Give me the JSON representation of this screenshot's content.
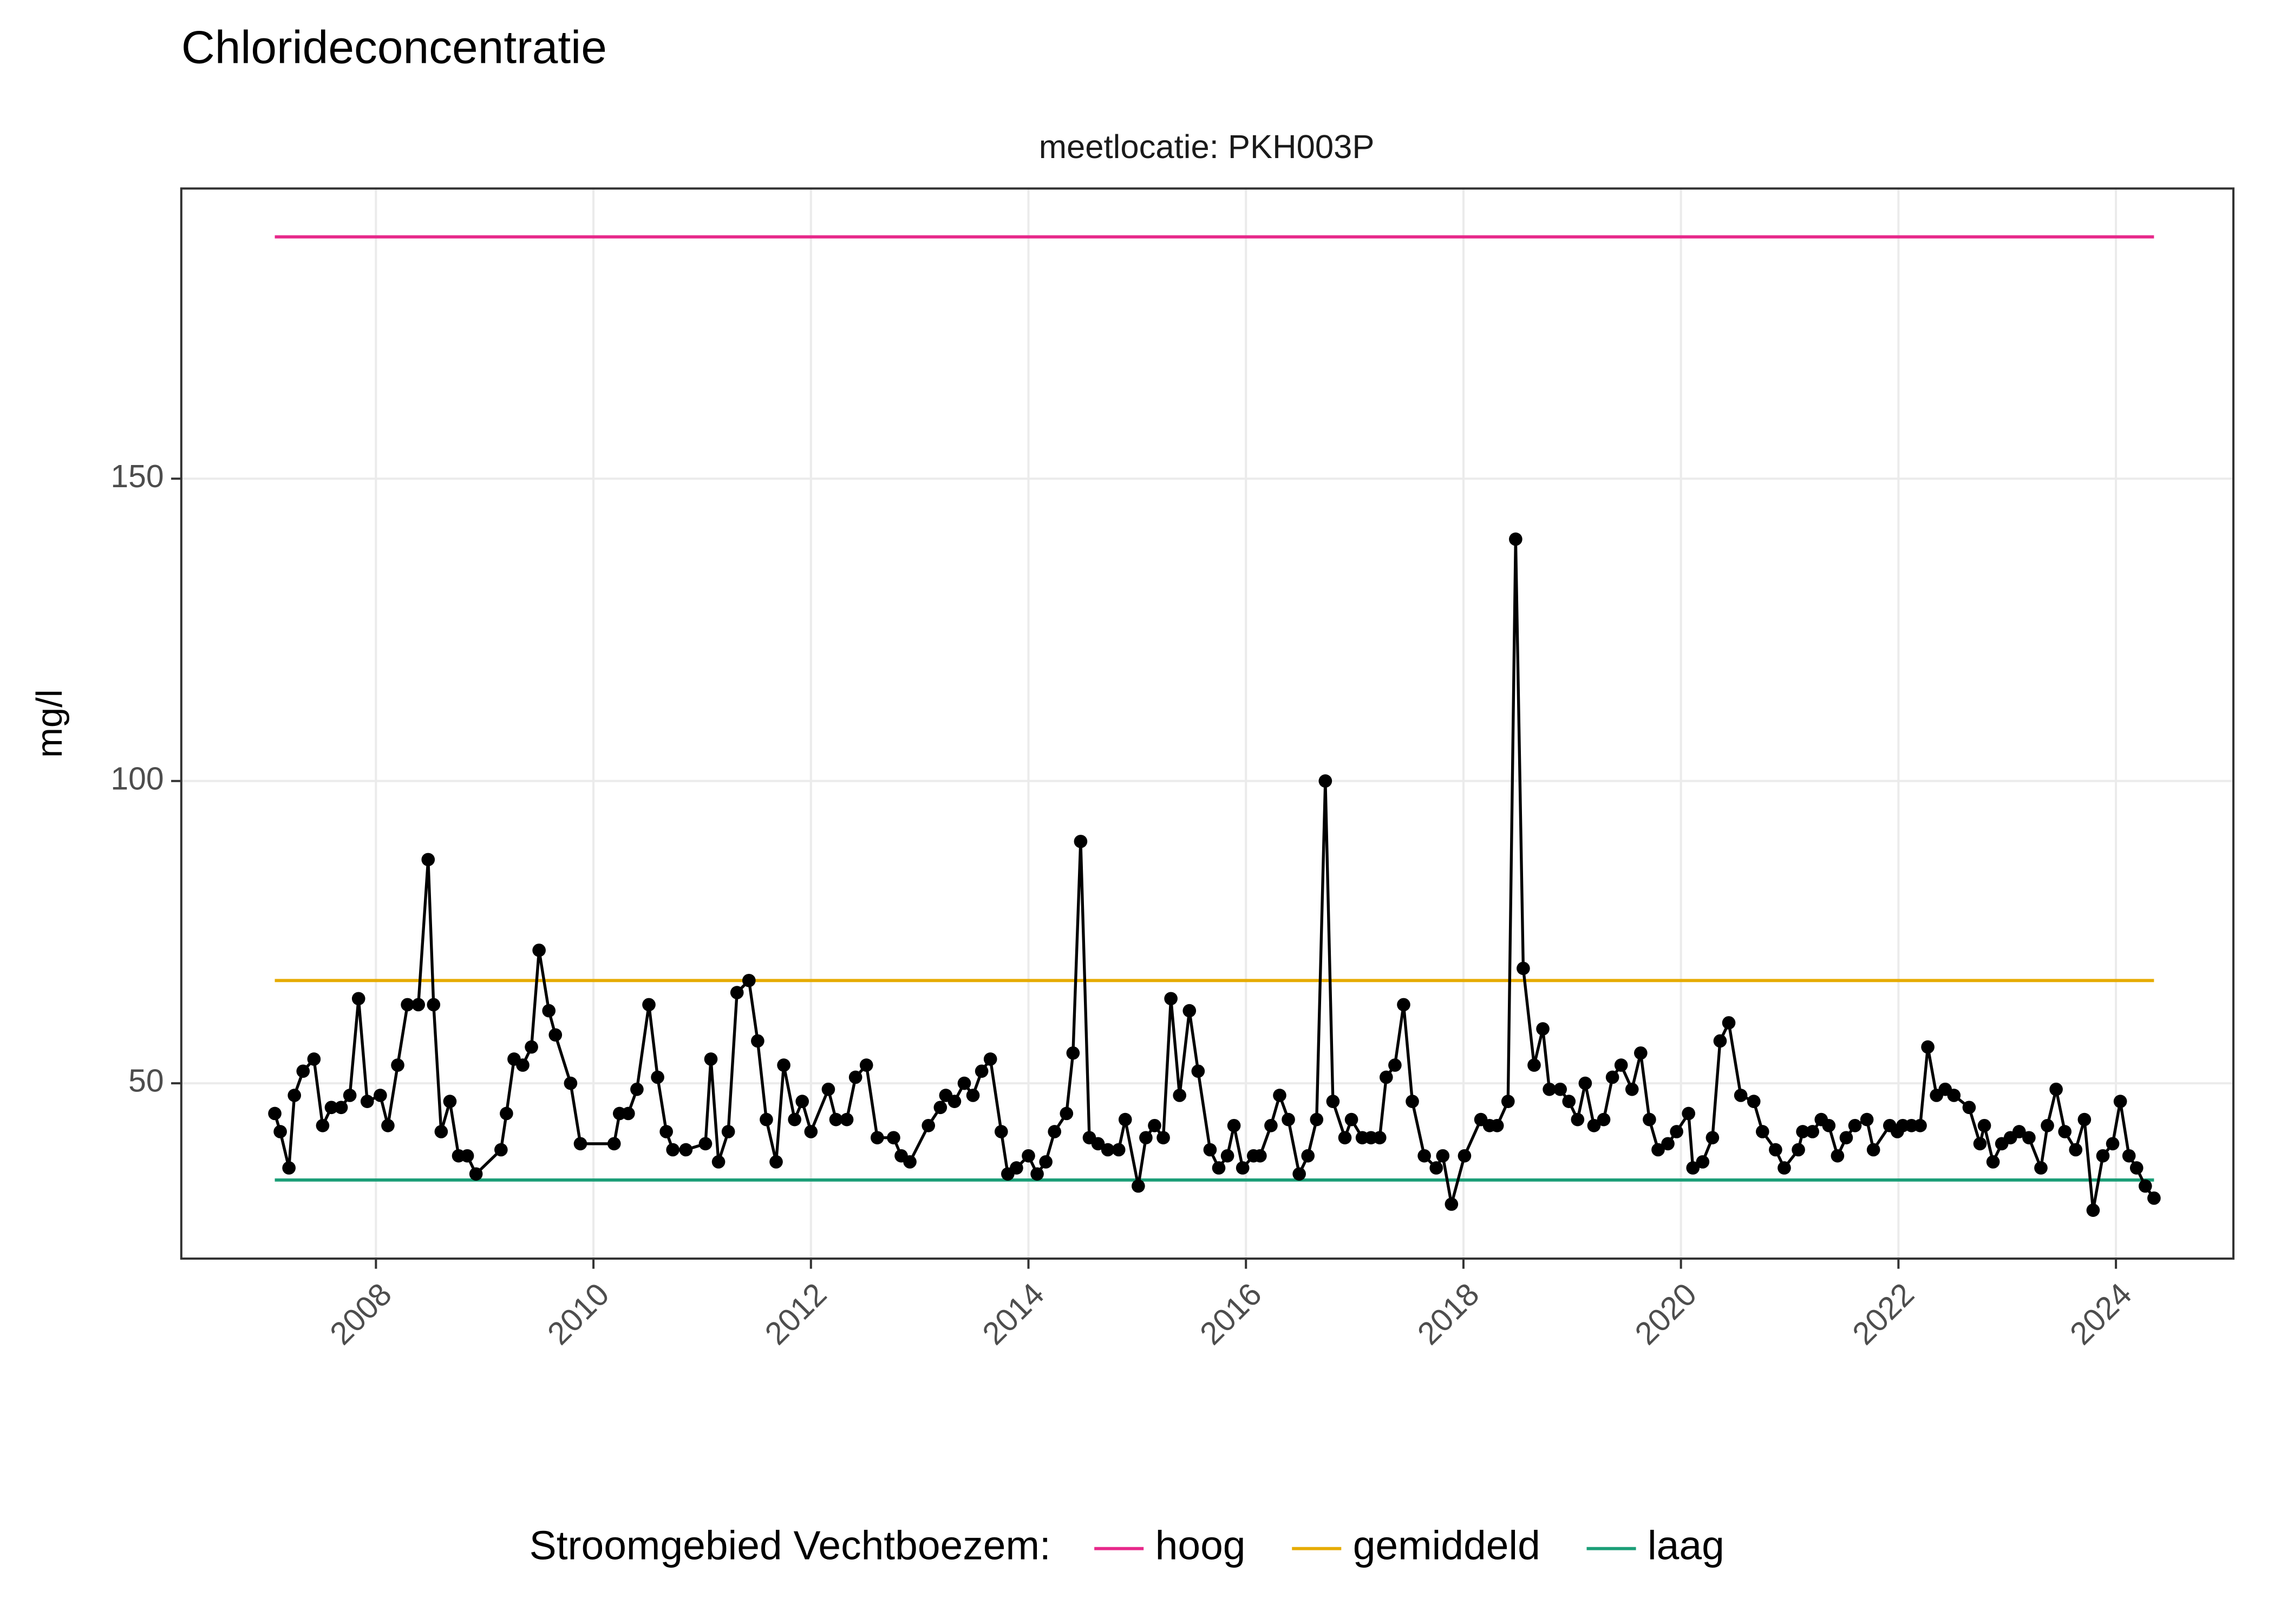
{
  "chart_data": {
    "type": "line",
    "title": "Chlorideconcentratie",
    "subtitle": "meetlocatie: PKH003P",
    "y_label": "mg/l",
    "legend_title": "Stroomgebied Vechtboezem:",
    "legend_position": "bottom",
    "grid": true,
    "xlim": [
      2006.21,
      2025.08
    ],
    "ylim": [
      21,
      198
    ],
    "xticks": [
      2008,
      2010,
      2012,
      2014,
      2016,
      2018,
      2020,
      2022,
      2024
    ],
    "yticks": [
      50,
      100,
      150
    ],
    "series": [
      {
        "color": "#000000",
        "x": [
          2007.07,
          2007.12,
          2007.2,
          2007.25,
          2007.33,
          2007.43,
          2007.51,
          2007.59,
          2007.68,
          2007.76,
          2007.84,
          2007.92,
          2008.04,
          2008.11,
          2008.2,
          2008.29,
          2008.39,
          2008.48,
          2008.53,
          2008.6,
          2008.68,
          2008.76,
          2008.84,
          2008.92,
          2009.15,
          2009.2,
          2009.27,
          2009.35,
          2009.43,
          2009.5,
          2009.59,
          2009.65,
          2009.79,
          2009.88,
          2010.19,
          2010.24,
          2010.32,
          2010.4,
          2010.51,
          2010.59,
          2010.67,
          2010.73,
          2010.85,
          2011.03,
          2011.08,
          2011.15,
          2011.24,
          2011.32,
          2011.43,
          2011.51,
          2011.59,
          2011.68,
          2011.75,
          2011.85,
          2011.92,
          2012.0,
          2012.16,
          2012.23,
          2012.33,
          2012.41,
          2012.51,
          2012.61,
          2012.76,
          2012.83,
          2012.91,
          2013.08,
          2013.19,
          2013.24,
          2013.32,
          2013.41,
          2013.49,
          2013.57,
          2013.65,
          2013.75,
          2013.81,
          2013.89,
          2014.0,
          2014.08,
          2014.16,
          2014.24,
          2014.35,
          2014.41,
          2014.48,
          2014.56,
          2014.64,
          2014.73,
          2014.83,
          2014.89,
          2015.01,
          2015.08,
          2015.16,
          2015.24,
          2015.31,
          2015.39,
          2015.48,
          2015.56,
          2015.67,
          2015.75,
          2015.83,
          2015.89,
          2015.97,
          2016.07,
          2016.13,
          2016.23,
          2016.31,
          2016.39,
          2016.49,
          2016.57,
          2016.65,
          2016.73,
          2016.8,
          2016.91,
          2016.97,
          2017.07,
          2017.15,
          2017.23,
          2017.29,
          2017.37,
          2017.45,
          2017.53,
          2017.64,
          2017.75,
          2017.81,
          2017.89,
          2018.01,
          2018.16,
          2018.24,
          2018.31,
          2018.41,
          2018.48,
          2018.55,
          2018.65,
          2018.73,
          2018.79,
          2018.89,
          2018.97,
          2019.05,
          2019.12,
          2019.2,
          2019.29,
          2019.37,
          2019.45,
          2019.55,
          2019.63,
          2019.71,
          2019.79,
          2019.88,
          2019.96,
          2020.07,
          2020.11,
          2020.2,
          2020.29,
          2020.36,
          2020.44,
          2020.55,
          2020.67,
          2020.75,
          2020.87,
          2020.95,
          2021.08,
          2021.12,
          2021.21,
          2021.29,
          2021.36,
          2021.44,
          2021.52,
          2021.6,
          2021.71,
          2021.77,
          2021.92,
          2021.99,
          2022.04,
          2022.12,
          2022.2,
          2022.27,
          2022.35,
          2022.43,
          2022.51,
          2022.65,
          2022.75,
          2022.79,
          2022.87,
          2022.95,
          2023.03,
          2023.11,
          2023.2,
          2023.31,
          2023.37,
          2023.45,
          2023.53,
          2023.63,
          2023.71,
          2023.79,
          2023.88,
          2023.97,
          2024.04,
          2024.12,
          2024.19,
          2024.27,
          2024.35
        ],
        "values": [
          45,
          42,
          36,
          48,
          52,
          54,
          43,
          46,
          46,
          48,
          64,
          47,
          48,
          43,
          53,
          63,
          63,
          87,
          63,
          42,
          47,
          38,
          38,
          35,
          39,
          45,
          54,
          53,
          56,
          72,
          62,
          58,
          50,
          40,
          40,
          45,
          45,
          49,
          63,
          51,
          42,
          39,
          39,
          40,
          54,
          37,
          42,
          65,
          67,
          57,
          44,
          37,
          53,
          44,
          47,
          42,
          49,
          44,
          44,
          51,
          53,
          41,
          41,
          38,
          37,
          43,
          46,
          48,
          47,
          50,
          48,
          52,
          54,
          42,
          35,
          36,
          38,
          35,
          37,
          42,
          45,
          55,
          90,
          41,
          40,
          39,
          39,
          44,
          33,
          41,
          43,
          41,
          64,
          48,
          62,
          52,
          39,
          36,
          38,
          43,
          36,
          38,
          38,
          43,
          48,
          44,
          35,
          38,
          44,
          100,
          47,
          41,
          44,
          41,
          41,
          41,
          51,
          53,
          63,
          47,
          38,
          36,
          38,
          30,
          38,
          44,
          43,
          43,
          47,
          140,
          69,
          53,
          59,
          49,
          49,
          47,
          44,
          50,
          43,
          44,
          51,
          53,
          49,
          55,
          44,
          39,
          40,
          42,
          45,
          36,
          37,
          41,
          57,
          60,
          48,
          47,
          42,
          39,
          36,
          39,
          42,
          42,
          44,
          43,
          38,
          41,
          43,
          44,
          39,
          43,
          42,
          43,
          43,
          43,
          56,
          48,
          49,
          48,
          46,
          40,
          43,
          37,
          40,
          41,
          42,
          41,
          36,
          43,
          49,
          42,
          39,
          44,
          29,
          38,
          40,
          47,
          38,
          36,
          33,
          31
        ]
      }
    ],
    "reference_lines": [
      {
        "name": "hoog",
        "color": "#e7298a",
        "value": 190,
        "x": [
          2007.07,
          2024.35
        ]
      },
      {
        "name": "gemiddeld",
        "color": "#e6ab02",
        "value": 67,
        "x": [
          2007.07,
          2024.35
        ]
      },
      {
        "name": "laag",
        "color": "#1b9e77",
        "value": 34,
        "x": [
          2007.07,
          2024.35
        ]
      }
    ]
  }
}
